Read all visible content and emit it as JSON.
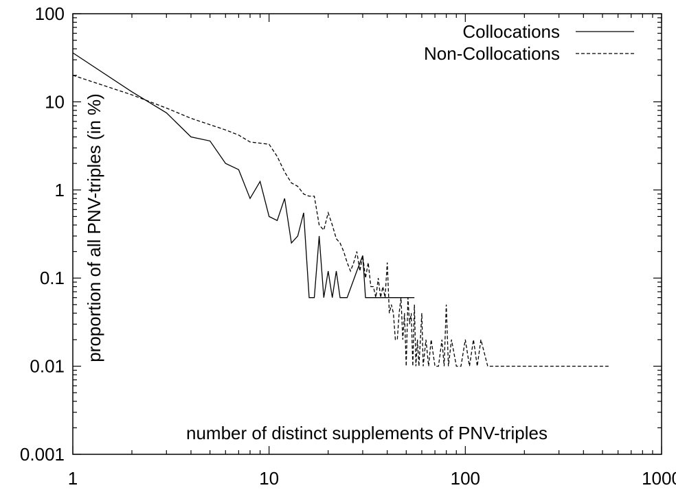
{
  "chart_data": {
    "type": "line",
    "xlabel": "number of distinct supplements of PNV-triples",
    "ylabel": "proportion of all PNV-triples (in %)",
    "x_scale": "log",
    "y_scale": "log",
    "xlim": [
      1,
      1000
    ],
    "ylim": [
      0.001,
      100
    ],
    "x_ticks": [
      {
        "value": 1,
        "label": "1"
      },
      {
        "value": 10,
        "label": "10"
      },
      {
        "value": 100,
        "label": "100"
      },
      {
        "value": 1000,
        "label": "1000"
      }
    ],
    "y_ticks": [
      {
        "value": 0.001,
        "label": "0.001"
      },
      {
        "value": 0.01,
        "label": "0.01"
      },
      {
        "value": 0.1,
        "label": "0.1"
      },
      {
        "value": 1,
        "label": "1"
      },
      {
        "value": 10,
        "label": "10"
      },
      {
        "value": 100,
        "label": "100"
      }
    ],
    "legend_position": "top-right",
    "grid": false,
    "series": [
      {
        "name": "Collocations",
        "style": "solid",
        "color": "#000000",
        "points": [
          [
            1,
            36
          ],
          [
            2,
            13
          ],
          [
            3,
            7.5
          ],
          [
            4,
            4.0
          ],
          [
            5,
            3.6
          ],
          [
            6,
            2.0
          ],
          [
            7,
            1.7
          ],
          [
            8,
            0.8
          ],
          [
            9,
            1.25
          ],
          [
            10,
            0.5
          ],
          [
            11,
            0.45
          ],
          [
            12,
            0.8
          ],
          [
            13,
            0.25
          ],
          [
            14,
            0.3
          ],
          [
            15,
            0.55
          ],
          [
            16,
            0.06
          ],
          [
            17,
            0.06
          ],
          [
            18,
            0.3
          ],
          [
            19,
            0.06
          ],
          [
            20,
            0.12
          ],
          [
            21,
            0.06
          ],
          [
            22,
            0.12
          ],
          [
            23,
            0.06
          ],
          [
            24,
            0.06
          ],
          [
            25,
            0.06
          ],
          [
            28,
            0.12
          ],
          [
            30,
            0.18
          ],
          [
            31,
            0.06
          ],
          [
            40,
            0.06
          ],
          [
            55,
            0.06
          ]
        ]
      },
      {
        "name": "Non-Collocations",
        "style": "dashed",
        "color": "#000000",
        "points": [
          [
            1,
            20
          ],
          [
            2,
            12
          ],
          [
            3,
            8.5
          ],
          [
            4,
            6.5
          ],
          [
            5,
            5.5
          ],
          [
            6,
            4.8
          ],
          [
            7,
            4.2
          ],
          [
            8,
            3.5
          ],
          [
            9,
            3.4
          ],
          [
            10,
            3.3
          ],
          [
            11,
            2.4
          ],
          [
            12,
            1.6
          ],
          [
            13,
            1.2
          ],
          [
            14,
            1.1
          ],
          [
            15,
            0.9
          ],
          [
            16,
            0.85
          ],
          [
            17,
            0.85
          ],
          [
            18,
            0.4
          ],
          [
            19,
            0.35
          ],
          [
            20,
            0.55
          ],
          [
            21,
            0.4
          ],
          [
            22,
            0.28
          ],
          [
            23,
            0.25
          ],
          [
            24,
            0.2
          ],
          [
            25,
            0.15
          ],
          [
            26,
            0.12
          ],
          [
            27,
            0.15
          ],
          [
            28,
            0.2
          ],
          [
            29,
            0.12
          ],
          [
            30,
            0.18
          ],
          [
            31,
            0.1
          ],
          [
            32,
            0.15
          ],
          [
            33,
            0.08
          ],
          [
            34,
            0.08
          ],
          [
            35,
            0.06
          ],
          [
            36,
            0.1
          ],
          [
            37,
            0.06
          ],
          [
            38,
            0.08
          ],
          [
            39,
            0.06
          ],
          [
            40,
            0.15
          ],
          [
            41,
            0.04
          ],
          [
            42,
            0.05
          ],
          [
            43,
            0.04
          ],
          [
            44,
            0.02
          ],
          [
            45,
            0.02
          ],
          [
            46,
            0.04
          ],
          [
            47,
            0.06
          ],
          [
            48,
            0.02
          ],
          [
            49,
            0.04
          ],
          [
            50,
            0.01
          ],
          [
            51,
            0.06
          ],
          [
            52,
            0.03
          ],
          [
            53,
            0.04
          ],
          [
            54,
            0.01
          ],
          [
            55,
            0.05
          ],
          [
            56,
            0.01
          ],
          [
            57,
            0.02
          ],
          [
            58,
            0.01
          ],
          [
            59,
            0.02
          ],
          [
            60,
            0.04
          ],
          [
            61,
            0.01
          ],
          [
            63,
            0.02
          ],
          [
            65,
            0.01
          ],
          [
            67,
            0.02
          ],
          [
            70,
            0.01
          ],
          [
            73,
            0.01
          ],
          [
            76,
            0.02
          ],
          [
            78,
            0.01
          ],
          [
            80,
            0.05
          ],
          [
            82,
            0.01
          ],
          [
            85,
            0.02
          ],
          [
            90,
            0.01
          ],
          [
            95,
            0.01
          ],
          [
            100,
            0.02
          ],
          [
            105,
            0.01
          ],
          [
            110,
            0.02
          ],
          [
            115,
            0.01
          ],
          [
            120,
            0.02
          ],
          [
            130,
            0.01
          ],
          [
            200,
            0.01
          ],
          [
            300,
            0.01
          ],
          [
            400,
            0.01
          ],
          [
            540,
            0.01
          ]
        ]
      }
    ]
  }
}
